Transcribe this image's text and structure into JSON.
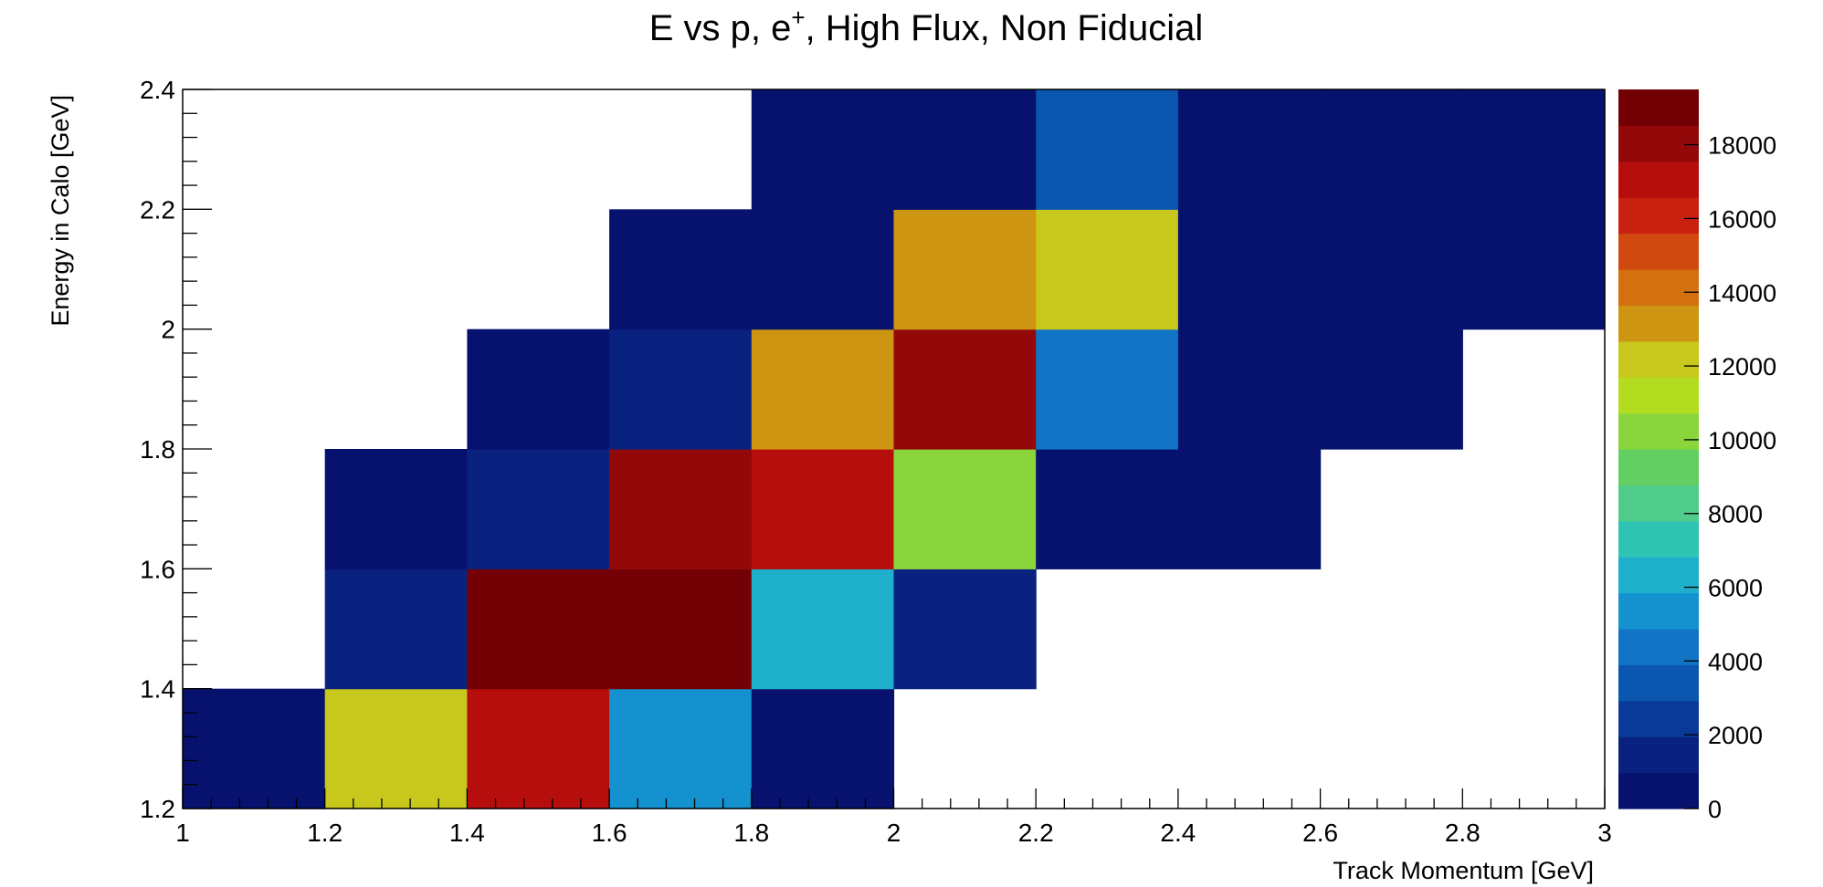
{
  "chart_data": {
    "type": "heatmap",
    "title": "E vs p, e",
    "title_sup": "+",
    "title_suffix": ", High Flux, Non Fiducial",
    "xlabel": "Track Momentum [GeV]",
    "ylabel": "Energy in Calo [GeV]",
    "xlim": [
      1,
      3
    ],
    "ylim": [
      1.2,
      2.4
    ],
    "zlim": [
      0,
      19500
    ],
    "x_bin_edges": [
      1.0,
      1.2,
      1.4,
      1.6,
      1.8,
      2.0,
      2.2,
      2.4,
      2.6,
      2.8,
      3.0
    ],
    "y_bin_edges": [
      1.2,
      1.4,
      1.6,
      1.8,
      2.0,
      2.2,
      2.4
    ],
    "x_ticks": [
      "1",
      "1.2",
      "1.4",
      "1.6",
      "1.8",
      "2",
      "2.2",
      "2.4",
      "2.6",
      "2.8",
      "3"
    ],
    "y_ticks": [
      "1.2",
      "1.4",
      "1.6",
      "1.8",
      "2",
      "2.2",
      "2.4"
    ],
    "z_ticks": [
      "0",
      "2000",
      "4000",
      "6000",
      "8000",
      "10000",
      "12000",
      "14000",
      "16000",
      "18000"
    ],
    "cells": [
      {
        "x": 1.1,
        "y": 1.3,
        "z": 200
      },
      {
        "x": 1.3,
        "y": 1.3,
        "z": 12500
      },
      {
        "x": 1.5,
        "y": 1.3,
        "z": 17200
      },
      {
        "x": 1.7,
        "y": 1.3,
        "z": 5200
      },
      {
        "x": 1.9,
        "y": 1.3,
        "z": 300
      },
      {
        "x": 1.3,
        "y": 1.5,
        "z": 1800
      },
      {
        "x": 1.5,
        "y": 1.5,
        "z": 19000
      },
      {
        "x": 1.7,
        "y": 1.5,
        "z": 19200
      },
      {
        "x": 1.9,
        "y": 1.5,
        "z": 6600
      },
      {
        "x": 2.1,
        "y": 1.5,
        "z": 1700
      },
      {
        "x": 1.3,
        "y": 1.7,
        "z": 300
      },
      {
        "x": 1.5,
        "y": 1.7,
        "z": 1800
      },
      {
        "x": 1.7,
        "y": 1.7,
        "z": 18200
      },
      {
        "x": 1.9,
        "y": 1.7,
        "z": 16600
      },
      {
        "x": 2.1,
        "y": 1.7,
        "z": 9800
      },
      {
        "x": 2.3,
        "y": 1.7,
        "z": 200
      },
      {
        "x": 2.5,
        "y": 1.7,
        "z": 100
      },
      {
        "x": 1.5,
        "y": 1.9,
        "z": 200
      },
      {
        "x": 1.7,
        "y": 1.9,
        "z": 1700
      },
      {
        "x": 1.9,
        "y": 1.9,
        "z": 13200
      },
      {
        "x": 2.1,
        "y": 1.9,
        "z": 18300
      },
      {
        "x": 2.3,
        "y": 1.9,
        "z": 4300
      },
      {
        "x": 2.5,
        "y": 1.9,
        "z": 300
      },
      {
        "x": 2.7,
        "y": 1.9,
        "z": 100
      },
      {
        "x": 1.7,
        "y": 2.1,
        "z": 100
      },
      {
        "x": 1.9,
        "y": 2.1,
        "z": 300
      },
      {
        "x": 2.1,
        "y": 2.1,
        "z": 13400
      },
      {
        "x": 2.3,
        "y": 2.1,
        "z": 12400
      },
      {
        "x": 2.5,
        "y": 2.1,
        "z": 400
      },
      {
        "x": 2.7,
        "y": 2.1,
        "z": 200
      },
      {
        "x": 2.9,
        "y": 2.1,
        "z": 100
      },
      {
        "x": 1.9,
        "y": 2.3,
        "z": 100
      },
      {
        "x": 2.1,
        "y": 2.3,
        "z": 200
      },
      {
        "x": 2.3,
        "y": 2.3,
        "z": 3000
      },
      {
        "x": 2.5,
        "y": 2.3,
        "z": 300
      },
      {
        "x": 2.7,
        "y": 2.3,
        "z": 200
      },
      {
        "x": 2.9,
        "y": 2.3,
        "z": 100
      }
    ],
    "palette": [
      "#06126e",
      "#0a227f",
      "#093a97",
      "#0b56ae",
      "#1174c5",
      "#1492cf",
      "#1eb0cb",
      "#2fc4b2",
      "#4fcb8a",
      "#63ce61",
      "#8ad43c",
      "#b3dc20",
      "#c8c71b",
      "#cd9512",
      "#d37010",
      "#d0490f",
      "#c92110",
      "#b50e0c",
      "#93090a",
      "#730005"
    ],
    "grid": false,
    "legend": "colorbar-right"
  }
}
